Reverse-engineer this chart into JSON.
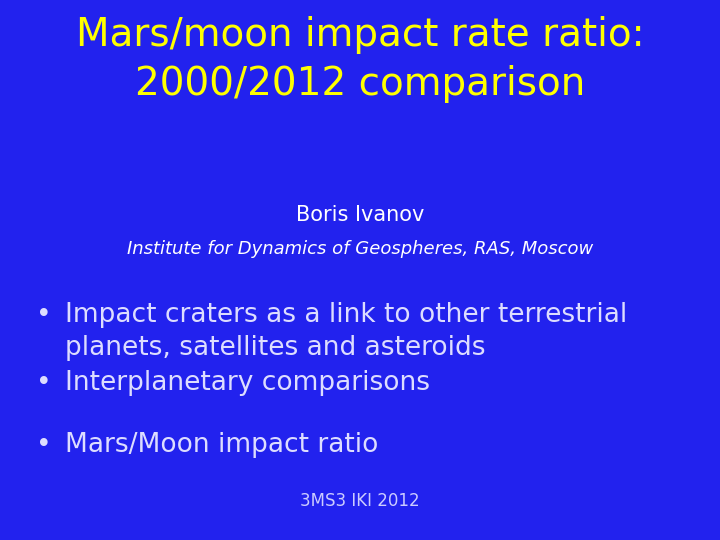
{
  "background_color": "#2222ee",
  "title_line1": "Mars/moon impact rate ratio:",
  "title_line2": "2000/2012 comparison",
  "title_color": "#ffff00",
  "title_fontsize": 28,
  "author_name": "Boris Ivanov",
  "author_fontsize": 15,
  "author_color": "#ffffff",
  "institute_text": "Institute for Dynamics of Geospheres, RAS, Moscow",
  "institute_fontsize": 13,
  "institute_color": "#ffffff",
  "bullet_items": [
    "Impact craters as a link to other terrestrial\nplanets, satellites and asteroids",
    "Interplanetary comparisons",
    "Mars/Moon impact ratio"
  ],
  "bullet_color": "#ddddff",
  "bullet_fontsize": 19,
  "footer_text": "3MS3 IKI 2012",
  "footer_color": "#ccccff",
  "footer_fontsize": 12
}
